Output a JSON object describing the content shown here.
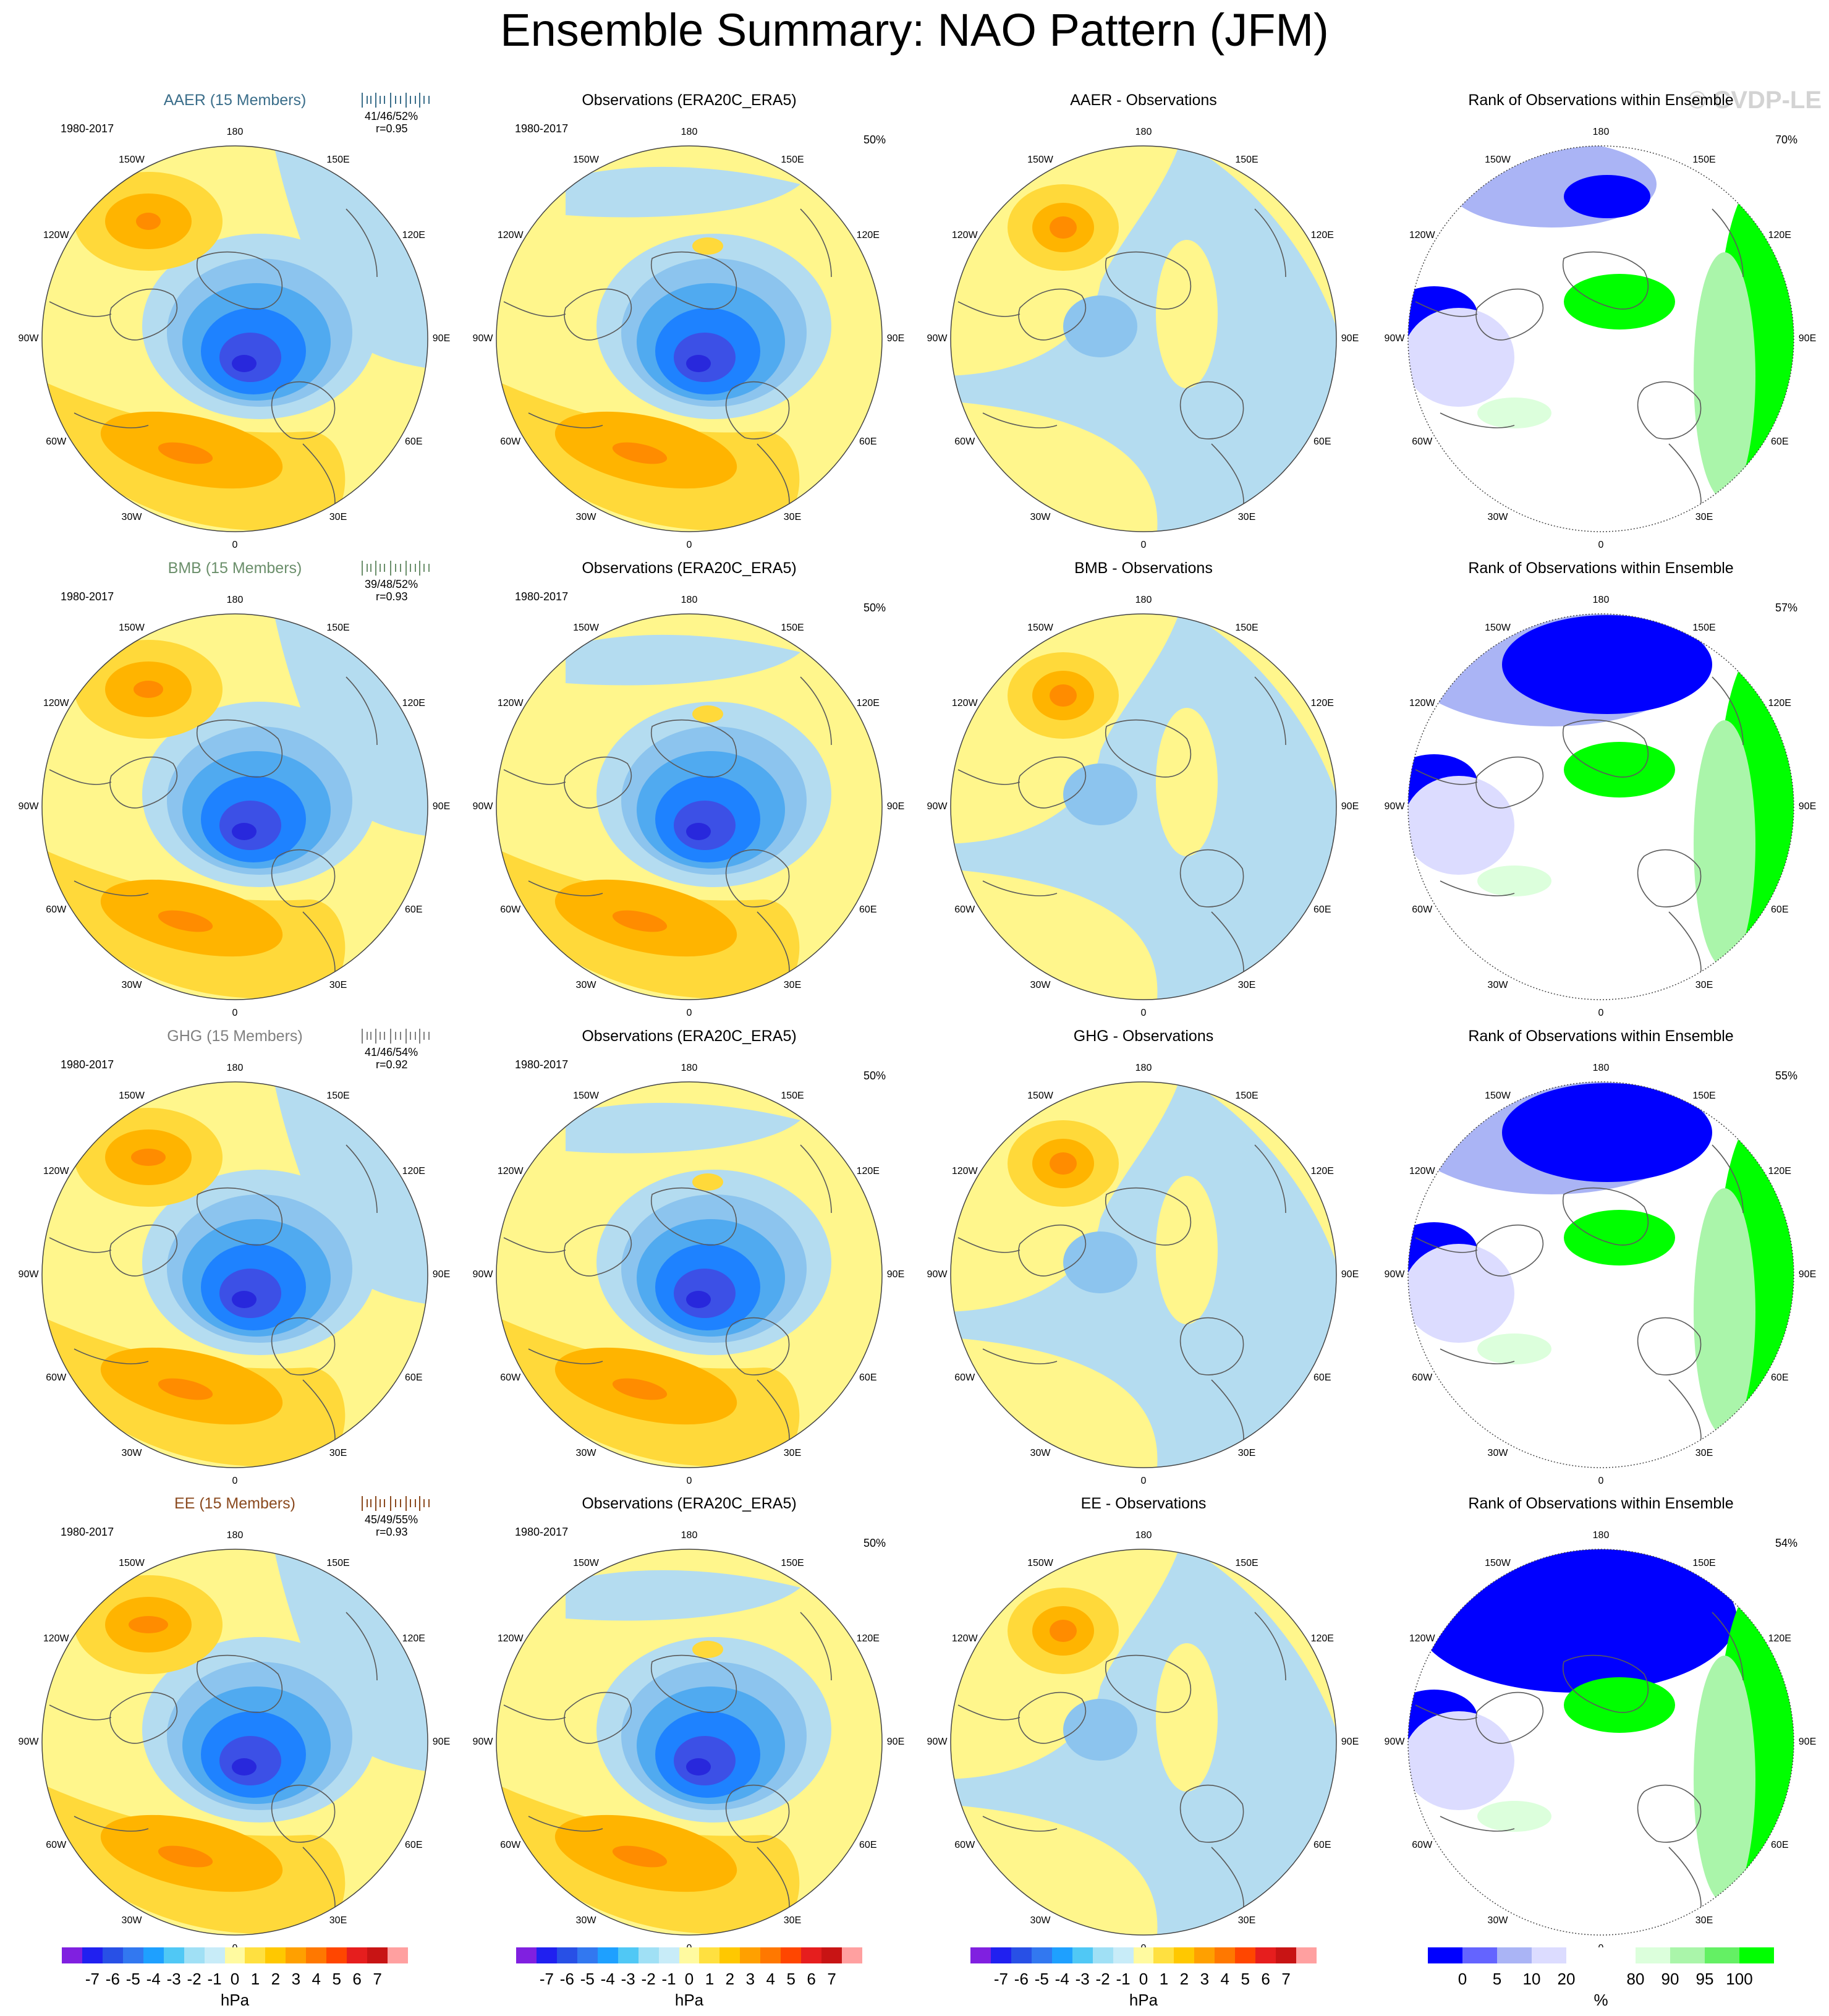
{
  "title": "Ensemble Summary: NAO Pattern (JFM)",
  "watermark": "© CVDP-LE",
  "lon_labels": [
    "180",
    "150E",
    "120E",
    "90E",
    "60E",
    "30E",
    "0",
    "30W",
    "60W",
    "90W",
    "120W",
    "150W"
  ],
  "colors": {
    "pos1": "#fff68c",
    "pos2": "#ffd93a",
    "pos3": "#ffb400",
    "pos4": "#ff8c00",
    "neg1": "#b4dcf0",
    "neg2": "#8cc4ee",
    "neg3": "#50aaf0",
    "neg4": "#1e82ff",
    "neg5": "#3c50e6",
    "neg6": "#2828dc",
    "rank_low": "#0000ff",
    "rank_low2": "#aab4f5",
    "rank_low3": "#dcdcff",
    "rank_high": "#00ff00",
    "rank_high2": "#aaf5aa",
    "rank_high3": "#dcffdc",
    "coast": "#5a5a5a"
  },
  "rows": [
    {
      "model_title": "AAER (15 Members)",
      "model_color": "#3b6e8a",
      "period": "1980-2017",
      "stats1": "41/46/52%",
      "stats2": "r=0.95",
      "obs_title": "Observations (ERA20C_ERA5)",
      "obs_period": "1980-2017",
      "obs_pct": "50%",
      "diff_title": "AAER - Observations",
      "rank_title": "Rank of Observations within Ensemble",
      "rank_pct": "70%"
    },
    {
      "model_title": "BMB (15 Members)",
      "model_color": "#6b8f6b",
      "period": "1980-2017",
      "stats1": "39/48/52%",
      "stats2": "r=0.93",
      "obs_title": "Observations (ERA20C_ERA5)",
      "obs_period": "1980-2017",
      "obs_pct": "50%",
      "diff_title": "BMB - Observations",
      "rank_title": "Rank of Observations within Ensemble",
      "rank_pct": "57%"
    },
    {
      "model_title": "GHG (15 Members)",
      "model_color": "#808080",
      "period": "1980-2017",
      "stats1": "41/46/54%",
      "stats2": "r=0.92",
      "obs_title": "Observations (ERA20C_ERA5)",
      "obs_period": "1980-2017",
      "obs_pct": "50%",
      "diff_title": "GHG - Observations",
      "rank_title": "Rank of Observations within Ensemble",
      "rank_pct": "55%"
    },
    {
      "model_title": "EE (15 Members)",
      "model_color": "#8b4a1f",
      "period": "1980-2017",
      "stats1": "45/49/55%",
      "stats2": "r=0.93",
      "obs_title": "Observations (ERA20C_ERA5)",
      "obs_period": "1980-2017",
      "obs_pct": "50%",
      "diff_title": "EE - Observations",
      "rank_title": "Rank of Observations within Ensemble",
      "rank_pct": "54%"
    }
  ],
  "colorbar_hpa": {
    "colors": [
      "#8020e0",
      "#2020f0",
      "#2850e6",
      "#3278f0",
      "#1ea0ff",
      "#50c8f5",
      "#a0e0f5",
      "#c8ecf8",
      "#fffaa0",
      "#ffe040",
      "#ffc800",
      "#ffa000",
      "#ff7800",
      "#ff4600",
      "#e61e1e",
      "#c81414",
      "#ffa0a0"
    ],
    "ticks": [
      "-7",
      "-6",
      "-5",
      "-4",
      "-3",
      "-2",
      "-1",
      "0",
      "1",
      "2",
      "3",
      "4",
      "5",
      "6",
      "7"
    ],
    "unit": "hPa"
  },
  "colorbar_rank": {
    "colors": [
      "#0000ff",
      "#6464ff",
      "#aab4f5",
      "#dcdcff",
      "#ffffff",
      "#ffffff",
      "#dcffdc",
      "#aaf5aa",
      "#64f064",
      "#00ff00"
    ],
    "ticks": [
      "0",
      "5",
      "10",
      "20",
      "80",
      "90",
      "95",
      "100"
    ],
    "unit": "%"
  }
}
